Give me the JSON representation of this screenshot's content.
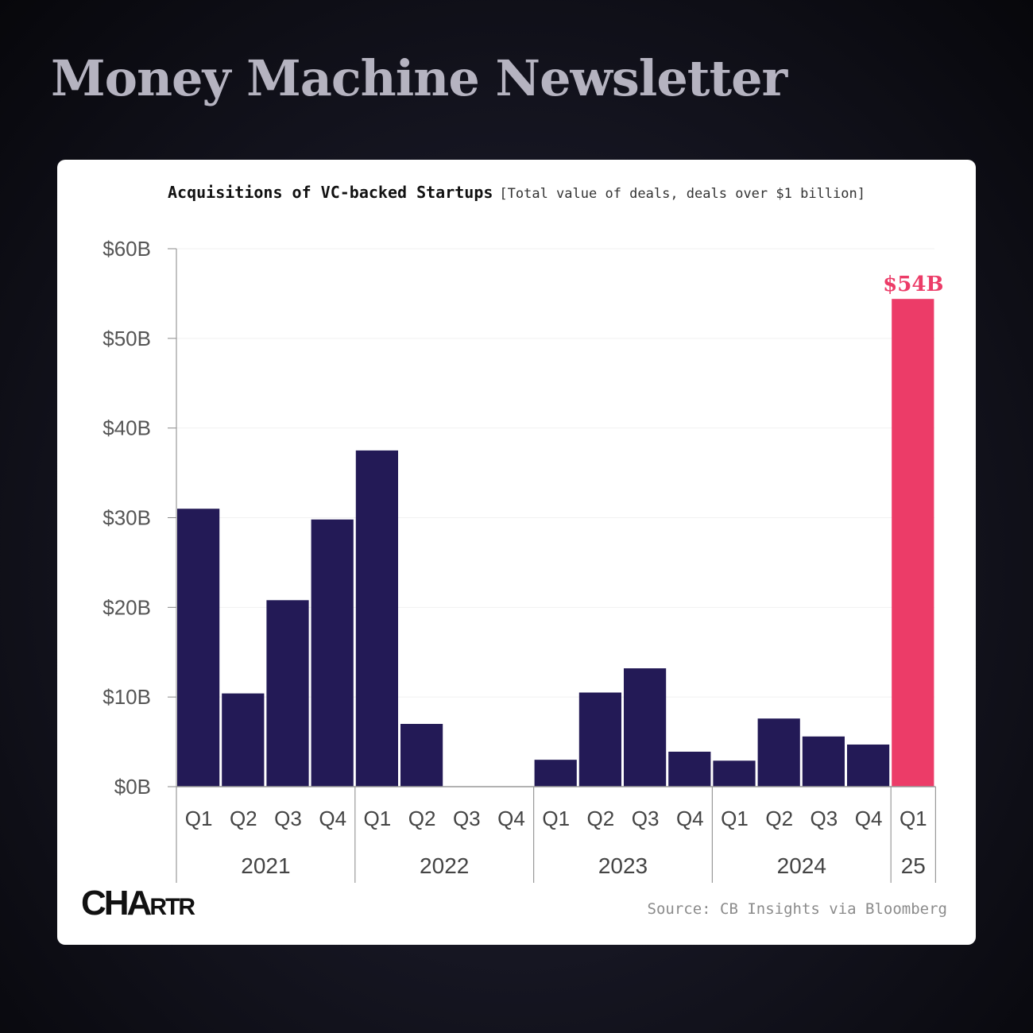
{
  "page": {
    "newsletter_title": "Money Machine Newsletter",
    "source": "Source: CB Insights via Bloomberg",
    "logo": "CHARTR"
  },
  "chart_data": {
    "type": "bar",
    "title": "Acquisitions of VC-backed Startups",
    "subtitle": "[Total value of deals, deals over $1 billion]",
    "xlabel": "",
    "ylabel": "",
    "ylim": [
      0,
      60
    ],
    "yticks": [
      0,
      10,
      20,
      30,
      40,
      50,
      60
    ],
    "ytick_labels": [
      "$0B",
      "$10B",
      "$20B",
      "$30B",
      "$40B",
      "$50B",
      "$60B"
    ],
    "categories": [
      "Q1",
      "Q2",
      "Q3",
      "Q4",
      "Q1",
      "Q2",
      "Q3",
      "Q4",
      "Q1",
      "Q2",
      "Q3",
      "Q4",
      "Q1",
      "Q2",
      "Q3",
      "Q4",
      "Q1"
    ],
    "groups": [
      {
        "label": "2021",
        "count": 4
      },
      {
        "label": "2022",
        "count": 4
      },
      {
        "label": "2023",
        "count": 4
      },
      {
        "label": "2024",
        "count": 4
      },
      {
        "label": "25",
        "count": 1
      }
    ],
    "values": [
      31.0,
      10.4,
      20.8,
      29.8,
      37.5,
      7.0,
      0,
      0,
      3.0,
      10.5,
      13.2,
      3.9,
      2.9,
      7.6,
      5.6,
      4.7,
      54.4
    ],
    "colors": {
      "default": "#231a56",
      "highlight": "#ec3c68"
    },
    "highlight_index": 16,
    "annotation": {
      "index": 16,
      "text": "$54B"
    },
    "grid": true
  }
}
